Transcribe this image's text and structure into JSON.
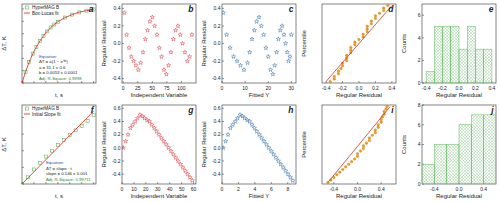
{
  "chart_data": [
    {
      "type": "scatter",
      "title": "a",
      "x_label": "t, s",
      "y_label": "ΔT, K",
      "xlim": [
        0,
        620
      ],
      "ylim": [
        0,
        32
      ],
      "xticks": [
        0,
        100,
        200,
        300,
        400,
        500,
        600
      ],
      "yticks": [
        0,
        5,
        10,
        15,
        20,
        25,
        30
      ],
      "tick_labels": false,
      "legend": "upper left",
      "series": [
        {
          "name": "HyperMAG B",
          "type": "scatter",
          "marker": "square",
          "color": "#5cb85c",
          "x": [
            0,
            30,
            60,
            90,
            120,
            150,
            180,
            210,
            240,
            270,
            300,
            360,
            420,
            480,
            540,
            600
          ],
          "values": [
            0,
            4.5,
            8.5,
            11.9,
            14.6,
            17.0,
            19.0,
            20.9,
            22.5,
            23.7,
            24.8,
            26.5,
            27.7,
            28.6,
            29.3,
            29.8
          ]
        },
        {
          "name": "Box-Lucas fit",
          "type": "line",
          "color": "#e02020",
          "x": [
            0,
            30,
            60,
            90,
            120,
            150,
            180,
            210,
            240,
            270,
            300,
            360,
            420,
            480,
            540,
            600
          ],
          "values": [
            0,
            4.57,
            8.47,
            11.8,
            14.6,
            17.0,
            19.1,
            20.9,
            22.4,
            23.7,
            24.8,
            26.5,
            27.7,
            28.7,
            29.3,
            29.8
          ]
        }
      ],
      "annotations": [
        "Equation:",
        "ΔT = a(1 − e⁻ᵇᵗ)",
        "a = 31.1 ± 0.6",
        "b = 0.0053 ± 0.0001",
        "Adj. R-Square: 0.9998"
      ]
    },
    {
      "type": "scatter",
      "title": "b",
      "x_label": "Independent Variable",
      "y_label": "Regular Residual",
      "xlim": [
        -2,
        125
      ],
      "ylim": [
        -0.45,
        0.45
      ],
      "xticks": [
        0,
        25,
        50,
        75,
        100
      ],
      "yticks": [
        -0.4,
        -0.2,
        {
          "value": 0,
          "label": "0.0"
        },
        0.2,
        0.4
      ],
      "series": [
        {
          "type": "scatter",
          "marker": "star",
          "color": "#d9363e",
          "x": [
            2,
            6,
            10,
            14,
            18,
            22,
            26,
            30,
            34,
            38,
            42,
            46,
            50,
            54,
            58,
            62,
            66,
            70,
            74,
            78,
            82,
            86,
            90,
            94,
            98,
            102,
            106,
            110,
            114,
            118
          ],
          "values": [
            0.35,
            0.1,
            -0.05,
            -0.15,
            -0.2,
            -0.25,
            -0.3,
            -0.22,
            -0.1,
            0.05,
            0.15,
            0.25,
            0.3,
            0.2,
            0.1,
            -0.05,
            -0.15,
            -0.3,
            -0.35,
            -0.25,
            -0.1,
            0.05,
            0.15,
            0.2,
            0.1,
            0.0,
            -0.1,
            -0.2,
            -0.15,
            0.1
          ]
        }
      ]
    },
    {
      "type": "scatter",
      "title": "c",
      "x_label": "Fitted Y",
      "y_label": "Regular Residual",
      "xlim": [
        0,
        32
      ],
      "ylim": [
        -0.45,
        0.45
      ],
      "xticks": [
        0,
        10,
        20,
        30
      ],
      "yticks": [
        -0.4,
        -0.2,
        {
          "value": 0,
          "label": "0.0"
        },
        0.2,
        0.4
      ],
      "series": [
        {
          "type": "scatter",
          "marker": "star",
          "color": "#2e6da4",
          "x": [
            0.5,
            2,
            3.5,
            5,
            6.5,
            8,
            9.5,
            11,
            12,
            13,
            14,
            15,
            16,
            17,
            18,
            19,
            20,
            21,
            22,
            22.8,
            23.6,
            24.4,
            25.2,
            26,
            26.8,
            27.5,
            28.2,
            28.8,
            29.4,
            30
          ],
          "values": [
            0.35,
            0.1,
            -0.05,
            -0.15,
            -0.2,
            -0.25,
            -0.3,
            -0.22,
            -0.1,
            0.05,
            0.15,
            0.25,
            0.3,
            0.2,
            0.1,
            -0.05,
            -0.15,
            -0.3,
            -0.35,
            -0.25,
            -0.1,
            0.05,
            0.15,
            0.2,
            0.1,
            0.0,
            -0.1,
            -0.2,
            -0.15,
            0.1
          ]
        }
      ]
    },
    {
      "type": "scatter",
      "title": "d",
      "x_label": "Regular Residual",
      "y_label": "Percentile",
      "xlim": [
        -0.45,
        0.45
      ],
      "ylim": [
        0,
        100
      ],
      "xticks": [
        -0.4,
        -0.2,
        {
          "value": 0,
          "label": "0.0"
        },
        0.2,
        0.4
      ],
      "tick_labels": "x",
      "series": [
        {
          "type": "scatter",
          "marker": "circle",
          "color": "#f0a020",
          "x": [
            -0.35,
            -0.3,
            -0.3,
            -0.25,
            -0.25,
            -0.22,
            -0.2,
            -0.2,
            -0.15,
            -0.15,
            -0.15,
            -0.1,
            -0.1,
            -0.1,
            -0.05,
            -0.05,
            0.0,
            0.05,
            0.05,
            0.1,
            0.1,
            0.1,
            0.15,
            0.15,
            0.2,
            0.2,
            0.25,
            0.3,
            0.3,
            0.35
          ],
          "values": [
            1.7,
            5,
            8.3,
            11.7,
            15,
            18.3,
            21.7,
            25,
            28.3,
            31.7,
            35,
            38.3,
            41.7,
            45,
            48.3,
            51.7,
            55,
            58.3,
            61.7,
            65,
            68.3,
            71.7,
            75,
            78.3,
            81.7,
            85,
            88.3,
            91.7,
            95,
            98.3
          ]
        },
        {
          "type": "line",
          "color": "#c0392b",
          "x": [
            -0.4,
            0.4
          ],
          "values": [
            2,
            98
          ]
        }
      ]
    },
    {
      "type": "histogram",
      "title": "e",
      "x_label": "Regular Residual",
      "y_label": "Counts",
      "xlim": [
        -0.45,
        0.45
      ],
      "ylim": [
        0,
        7
      ],
      "xticks": [
        -0.4,
        -0.2,
        {
          "value": 0,
          "label": "0.0"
        },
        0.2,
        0.4
      ],
      "yticks": [
        0,
        2,
        4,
        6
      ],
      "color": "#5cb85c",
      "bins": [
        -0.4,
        -0.3,
        -0.2,
        -0.1,
        0,
        0.1,
        0.2,
        0.3,
        0.4
      ],
      "counts": [
        1,
        5,
        5,
        5,
        3,
        5,
        3,
        3
      ]
    },
    {
      "type": "scatter",
      "title": "f",
      "x_label": "t, s",
      "y_label": "ΔT, K",
      "xlim": [
        0,
        62
      ],
      "ylim": [
        0,
        9.5
      ],
      "xticks": [
        0,
        10,
        20,
        30,
        40,
        50,
        60
      ],
      "yticks": [
        0,
        2,
        4,
        6,
        8
      ],
      "tick_labels": false,
      "legend": "upper left",
      "series": [
        {
          "name": "HyperMAG B",
          "type": "scatter",
          "marker": "square",
          "color": "#5cb85c",
          "x": [
            0,
            5,
            10,
            15,
            20,
            25,
            30,
            35,
            40,
            45,
            50,
            55,
            60
          ],
          "values": [
            0,
            0.8,
            1.75,
            2.55,
            3.3,
            4.0,
            4.7,
            5.3,
            5.9,
            6.45,
            7.0,
            7.6,
            8.3
          ]
        },
        {
          "name": "Initial Slope fit",
          "type": "line",
          "color": "#e02020",
          "x": [
            0,
            5,
            10,
            15,
            20,
            25,
            30,
            35,
            40,
            45,
            50,
            55,
            60
          ],
          "values": [
            0,
            0.73,
            1.46,
            2.19,
            2.92,
            3.65,
            4.38,
            5.11,
            5.84,
            6.57,
            7.3,
            8.03,
            8.76
          ]
        }
      ],
      "annotations": [
        "Equation:",
        "ΔT = slope · t",
        "slope = 0.146 ± 0.001",
        "Adj. R-Square: 0.99711"
      ]
    },
    {
      "type": "scatter",
      "title": "g",
      "x_label": "Independent Variable",
      "y_label": "Regular Residual",
      "xlim": [
        0,
        62
      ],
      "ylim": [
        -0.55,
        0.65
      ],
      "xticks": [
        0,
        10,
        20,
        30,
        40,
        50,
        60
      ],
      "yticks": [
        -0.4,
        -0.2,
        {
          "value": 0,
          "label": "0.0"
        },
        0.2,
        0.4,
        0.6
      ],
      "series": [
        {
          "type": "scatter",
          "marker": "star",
          "color": "#d9363e",
          "x": [
            1,
            3,
            5,
            7,
            9,
            11,
            13,
            15,
            17,
            19,
            21,
            23,
            25,
            27,
            29,
            31,
            33,
            35,
            37,
            39,
            41,
            43,
            45,
            47,
            49,
            51,
            53,
            55,
            57,
            59
          ],
          "values": [
            0.0,
            0.1,
            0.2,
            0.3,
            0.35,
            0.4,
            0.45,
            0.5,
            0.48,
            0.45,
            0.42,
            0.4,
            0.35,
            0.3,
            0.25,
            0.2,
            0.15,
            0.1,
            0.05,
            0.0,
            -0.05,
            -0.1,
            -0.15,
            -0.2,
            -0.25,
            -0.3,
            -0.35,
            -0.4,
            -0.45,
            -0.5
          ]
        }
      ]
    },
    {
      "type": "scatter",
      "title": "h",
      "x_label": "Fitted Y",
      "y_label": "Regular Residual",
      "xlim": [
        0,
        9
      ],
      "ylim": [
        -0.55,
        0.65
      ],
      "xticks": [
        0,
        2,
        4,
        6,
        8
      ],
      "yticks": [
        -0.4,
        -0.2,
        {
          "value": 0,
          "label": "0.0"
        },
        0.2,
        0.4,
        0.6
      ],
      "series": [
        {
          "type": "scatter",
          "marker": "star",
          "color": "#2e6da4",
          "x": [
            0.15,
            0.44,
            0.73,
            1.02,
            1.31,
            1.61,
            1.9,
            2.19,
            2.48,
            2.77,
            3.07,
            3.36,
            3.65,
            3.94,
            4.23,
            4.53,
            4.82,
            5.11,
            5.4,
            5.69,
            5.99,
            6.28,
            6.57,
            6.86,
            7.15,
            7.45,
            7.74,
            8.03,
            8.32,
            8.61
          ],
          "values": [
            0.0,
            0.1,
            0.2,
            0.3,
            0.35,
            0.4,
            0.45,
            0.5,
            0.48,
            0.45,
            0.42,
            0.4,
            0.35,
            0.3,
            0.25,
            0.2,
            0.15,
            0.1,
            0.05,
            0.0,
            -0.05,
            -0.1,
            -0.15,
            -0.2,
            -0.25,
            -0.3,
            -0.35,
            -0.4,
            -0.45,
            -0.5
          ]
        }
      ]
    },
    {
      "type": "scatter",
      "title": "i",
      "x_label": "Regular Residual",
      "y_label": "Percentile",
      "xlim": [
        -0.6,
        0.65
      ],
      "ylim": [
        0,
        100
      ],
      "xticks": [
        -0.4,
        {
          "value": 0,
          "label": "0.0"
        },
        0.4
      ],
      "tick_labels": "x",
      "series": [
        {
          "type": "scatter",
          "marker": "circle",
          "color": "#f0a020",
          "x": [
            -0.5,
            -0.45,
            -0.4,
            -0.35,
            -0.3,
            -0.25,
            -0.2,
            -0.15,
            -0.1,
            -0.05,
            0.0,
            0.0,
            0.05,
            0.1,
            0.1,
            0.15,
            0.2,
            0.2,
            0.25,
            0.3,
            0.3,
            0.35,
            0.35,
            0.4,
            0.4,
            0.42,
            0.45,
            0.45,
            0.48,
            0.5
          ],
          "values": [
            1.7,
            5,
            8.3,
            11.7,
            15,
            18.3,
            21.7,
            25,
            28.3,
            31.7,
            35,
            38.3,
            41.7,
            45,
            48.3,
            51.7,
            55,
            58.3,
            61.7,
            65,
            68.3,
            71.7,
            75,
            78.3,
            81.7,
            85,
            88.3,
            91.7,
            95,
            98.3
          ]
        },
        {
          "type": "line",
          "color": "#c0392b",
          "x": [
            -0.5,
            0.55
          ],
          "values": [
            2,
            98
          ]
        }
      ]
    },
    {
      "type": "histogram",
      "title": "j",
      "x_label": "Regular Residual",
      "y_label": "Counts",
      "xlim": [
        -0.6,
        0.6
      ],
      "ylim": [
        0,
        8
      ],
      "xticks": [
        -0.4,
        {
          "value": 0,
          "label": "0.0"
        },
        0.4
      ],
      "yticks": [
        0,
        2,
        4,
        6,
        8
      ],
      "color": "#5cb85c",
      "bins": [
        -0.6,
        -0.4,
        -0.2,
        0,
        0.2,
        0.4,
        0.6
      ],
      "counts": [
        2,
        4,
        4,
        6,
        7,
        7
      ]
    }
  ]
}
